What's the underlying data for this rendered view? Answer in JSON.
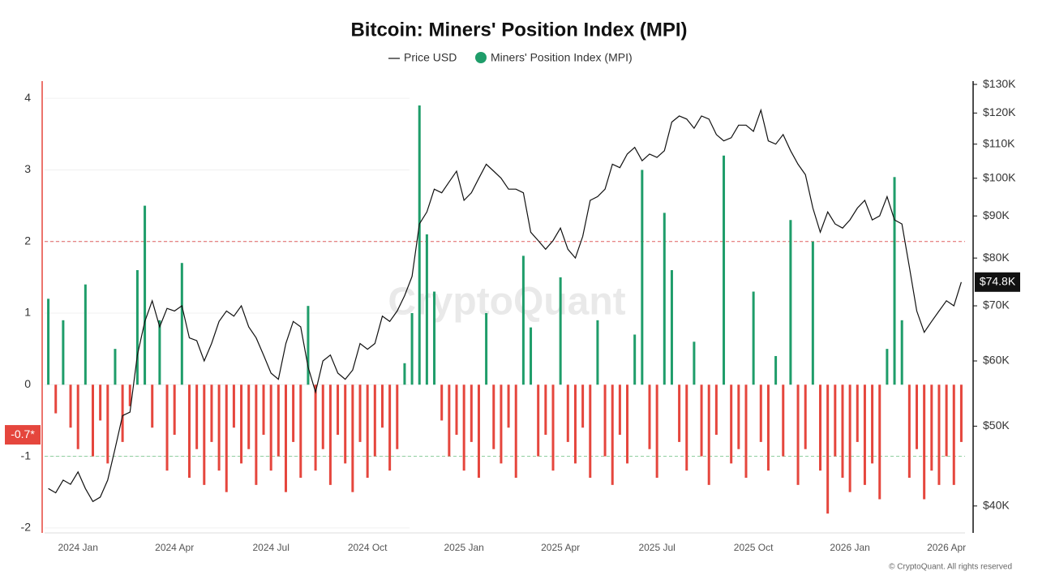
{
  "chart_data": {
    "type": "bar-line",
    "title": "Bitcoin: Miners' Position Index (MPI)",
    "categories": [
      null,
      null,
      null,
      null,
      "2024 Jan",
      null,
      null,
      null,
      null,
      null,
      null,
      null,
      null,
      null,
      null,
      null,
      null,
      "2024 Apr",
      null,
      null,
      null,
      null,
      null,
      null,
      null,
      null,
      null,
      null,
      null,
      null,
      "2024 Jul",
      null,
      null,
      null,
      null,
      null,
      null,
      null,
      null,
      null,
      null,
      null,
      null,
      "2024 Oct",
      null,
      null,
      null,
      null,
      null,
      null,
      null,
      null,
      null,
      null,
      null,
      null,
      "2025 Jan",
      null,
      null,
      null,
      null,
      null,
      null,
      null,
      null,
      null,
      null,
      null,
      null,
      "2025 Apr",
      null,
      null,
      null,
      null,
      null,
      null,
      null,
      null,
      null,
      null,
      null,
      null,
      "2025 Jul",
      null,
      null,
      null,
      null,
      null,
      null,
      null,
      null,
      null,
      null,
      null,
      null,
      "2025 Oct",
      null,
      null,
      null,
      null,
      null,
      null,
      null,
      null,
      null,
      null,
      null,
      null,
      "2026 Jan",
      null,
      null,
      null,
      null,
      null,
      null,
      null,
      null,
      null,
      null,
      null,
      null,
      "2026 Apr",
      null,
      null
    ],
    "series": [
      {
        "name": "Price USD",
        "type": "line",
        "axis": "y2",
        "color": "#111111",
        "values": [
          42000,
          41500,
          43000,
          42500,
          44000,
          42000,
          40500,
          41000,
          43000,
          47000,
          51500,
          52000,
          61000,
          67000,
          71000,
          66000,
          69500,
          69000,
          70000,
          64000,
          63500,
          60000,
          63000,
          67000,
          69000,
          68000,
          70000,
          66000,
          64000,
          61000,
          58000,
          57000,
          63000,
          67000,
          66000,
          59000,
          55000,
          60000,
          61000,
          58000,
          57000,
          58500,
          63000,
          62000,
          63000,
          68000,
          67000,
          69000,
          72000,
          76000,
          88000,
          91000,
          97000,
          96000,
          99000,
          102000,
          94000,
          96000,
          100000,
          104000,
          102000,
          100000,
          97000,
          97000,
          96000,
          86000,
          84000,
          82000,
          84000,
          87000,
          82000,
          80000,
          85000,
          94000,
          95000,
          97000,
          104000,
          103000,
          107000,
          109000,
          105000,
          107000,
          106000,
          108000,
          117000,
          119000,
          118000,
          115000,
          119000,
          118000,
          113000,
          111000,
          112000,
          116000,
          116000,
          114000,
          121000,
          111000,
          110000,
          113000,
          108000,
          104000,
          101000,
          92000,
          86000,
          91000,
          88000,
          87000,
          89000,
          92000,
          94000,
          89000,
          90000,
          95000,
          89000,
          88000,
          78000,
          69000,
          65000,
          67000,
          69000,
          71000,
          70000,
          74800
        ]
      },
      {
        "name": "Miners' Position Index (MPI)",
        "type": "bar",
        "color": "#1f9d6a",
        "negative_color": "#e5463d",
        "values": [
          1.2,
          -0.4,
          0.9,
          -0.6,
          -0.9,
          1.4,
          -1.0,
          -0.5,
          -1.1,
          0.5,
          -0.8,
          -0.3,
          1.6,
          2.5,
          -0.6,
          0.9,
          -1.2,
          -0.7,
          1.7,
          -1.3,
          -0.9,
          -1.4,
          -0.8,
          -1.2,
          -1.5,
          -0.6,
          -1.1,
          -0.9,
          -1.4,
          -0.7,
          -1.2,
          -1.0,
          -1.5,
          -0.8,
          -1.3,
          1.1,
          -1.2,
          -0.9,
          -1.4,
          -0.7,
          -1.1,
          -1.5,
          -0.8,
          -1.3,
          -1.0,
          -0.6,
          -1.2,
          -0.9,
          0.3,
          1.0,
          3.9,
          2.1,
          1.3,
          -0.5,
          -1.0,
          -0.7,
          -1.2,
          -0.8,
          -1.3,
          1.0,
          -0.9,
          -1.1,
          -0.6,
          -1.3,
          1.8,
          0.8,
          -1.0,
          -0.7,
          -1.2,
          1.5,
          -0.8,
          -1.1,
          -0.6,
          -1.3,
          0.9,
          -1.0,
          -1.4,
          -0.7,
          -1.1,
          0.7,
          3.0,
          -0.9,
          -1.3,
          2.4,
          1.6,
          -0.8,
          -1.2,
          0.6,
          -1.0,
          -1.4,
          -0.7,
          3.2,
          -1.1,
          -0.9,
          -1.3,
          1.3,
          -0.8,
          -1.2,
          0.4,
          -1.0,
          2.3,
          -1.4,
          -0.9,
          2.0,
          -1.2,
          -1.8,
          -1.0,
          -1.3,
          -1.5,
          -0.8,
          -1.4,
          -1.1,
          -1.6,
          0.5,
          2.9,
          0.9,
          -1.3,
          -0.9,
          -1.6,
          -1.2,
          -1.4,
          -1.0,
          -1.4,
          -0.8
        ]
      }
    ],
    "ylim": [
      -2.07,
      4.24
    ],
    "yticks": [
      4,
      3,
      2,
      1,
      0,
      -1,
      -2
    ],
    "y2lim": [
      37100,
      131200
    ],
    "y2log": true,
    "y2ticks": [
      {
        "value": 130000,
        "label": "$130K"
      },
      {
        "value": 120000,
        "label": "$120K"
      },
      {
        "value": 110000,
        "label": "$110K"
      },
      {
        "value": 100000,
        "label": "$100K"
      },
      {
        "value": 90000,
        "label": "$90K"
      },
      {
        "value": 80000,
        "label": "$80K"
      },
      {
        "value": 70000,
        "label": "$70K"
      },
      {
        "value": 60000,
        "label": "$60K"
      },
      {
        "value": 50000,
        "label": "$50K"
      },
      {
        "value": 40000,
        "label": "$40K"
      }
    ],
    "reference_lines": [
      {
        "value": 2,
        "color": "#e06060"
      },
      {
        "value": -1,
        "color": "#8fcf9f"
      }
    ],
    "y_marker": {
      "value": -0.7,
      "label": "-0.7*",
      "color": "#e5463d"
    },
    "y2_marker": {
      "value": 74800,
      "label": "$74.8K",
      "color": "#111111"
    },
    "watermark": "CryptoQuant",
    "credit": "© CryptoQuant. All rights reserved"
  }
}
